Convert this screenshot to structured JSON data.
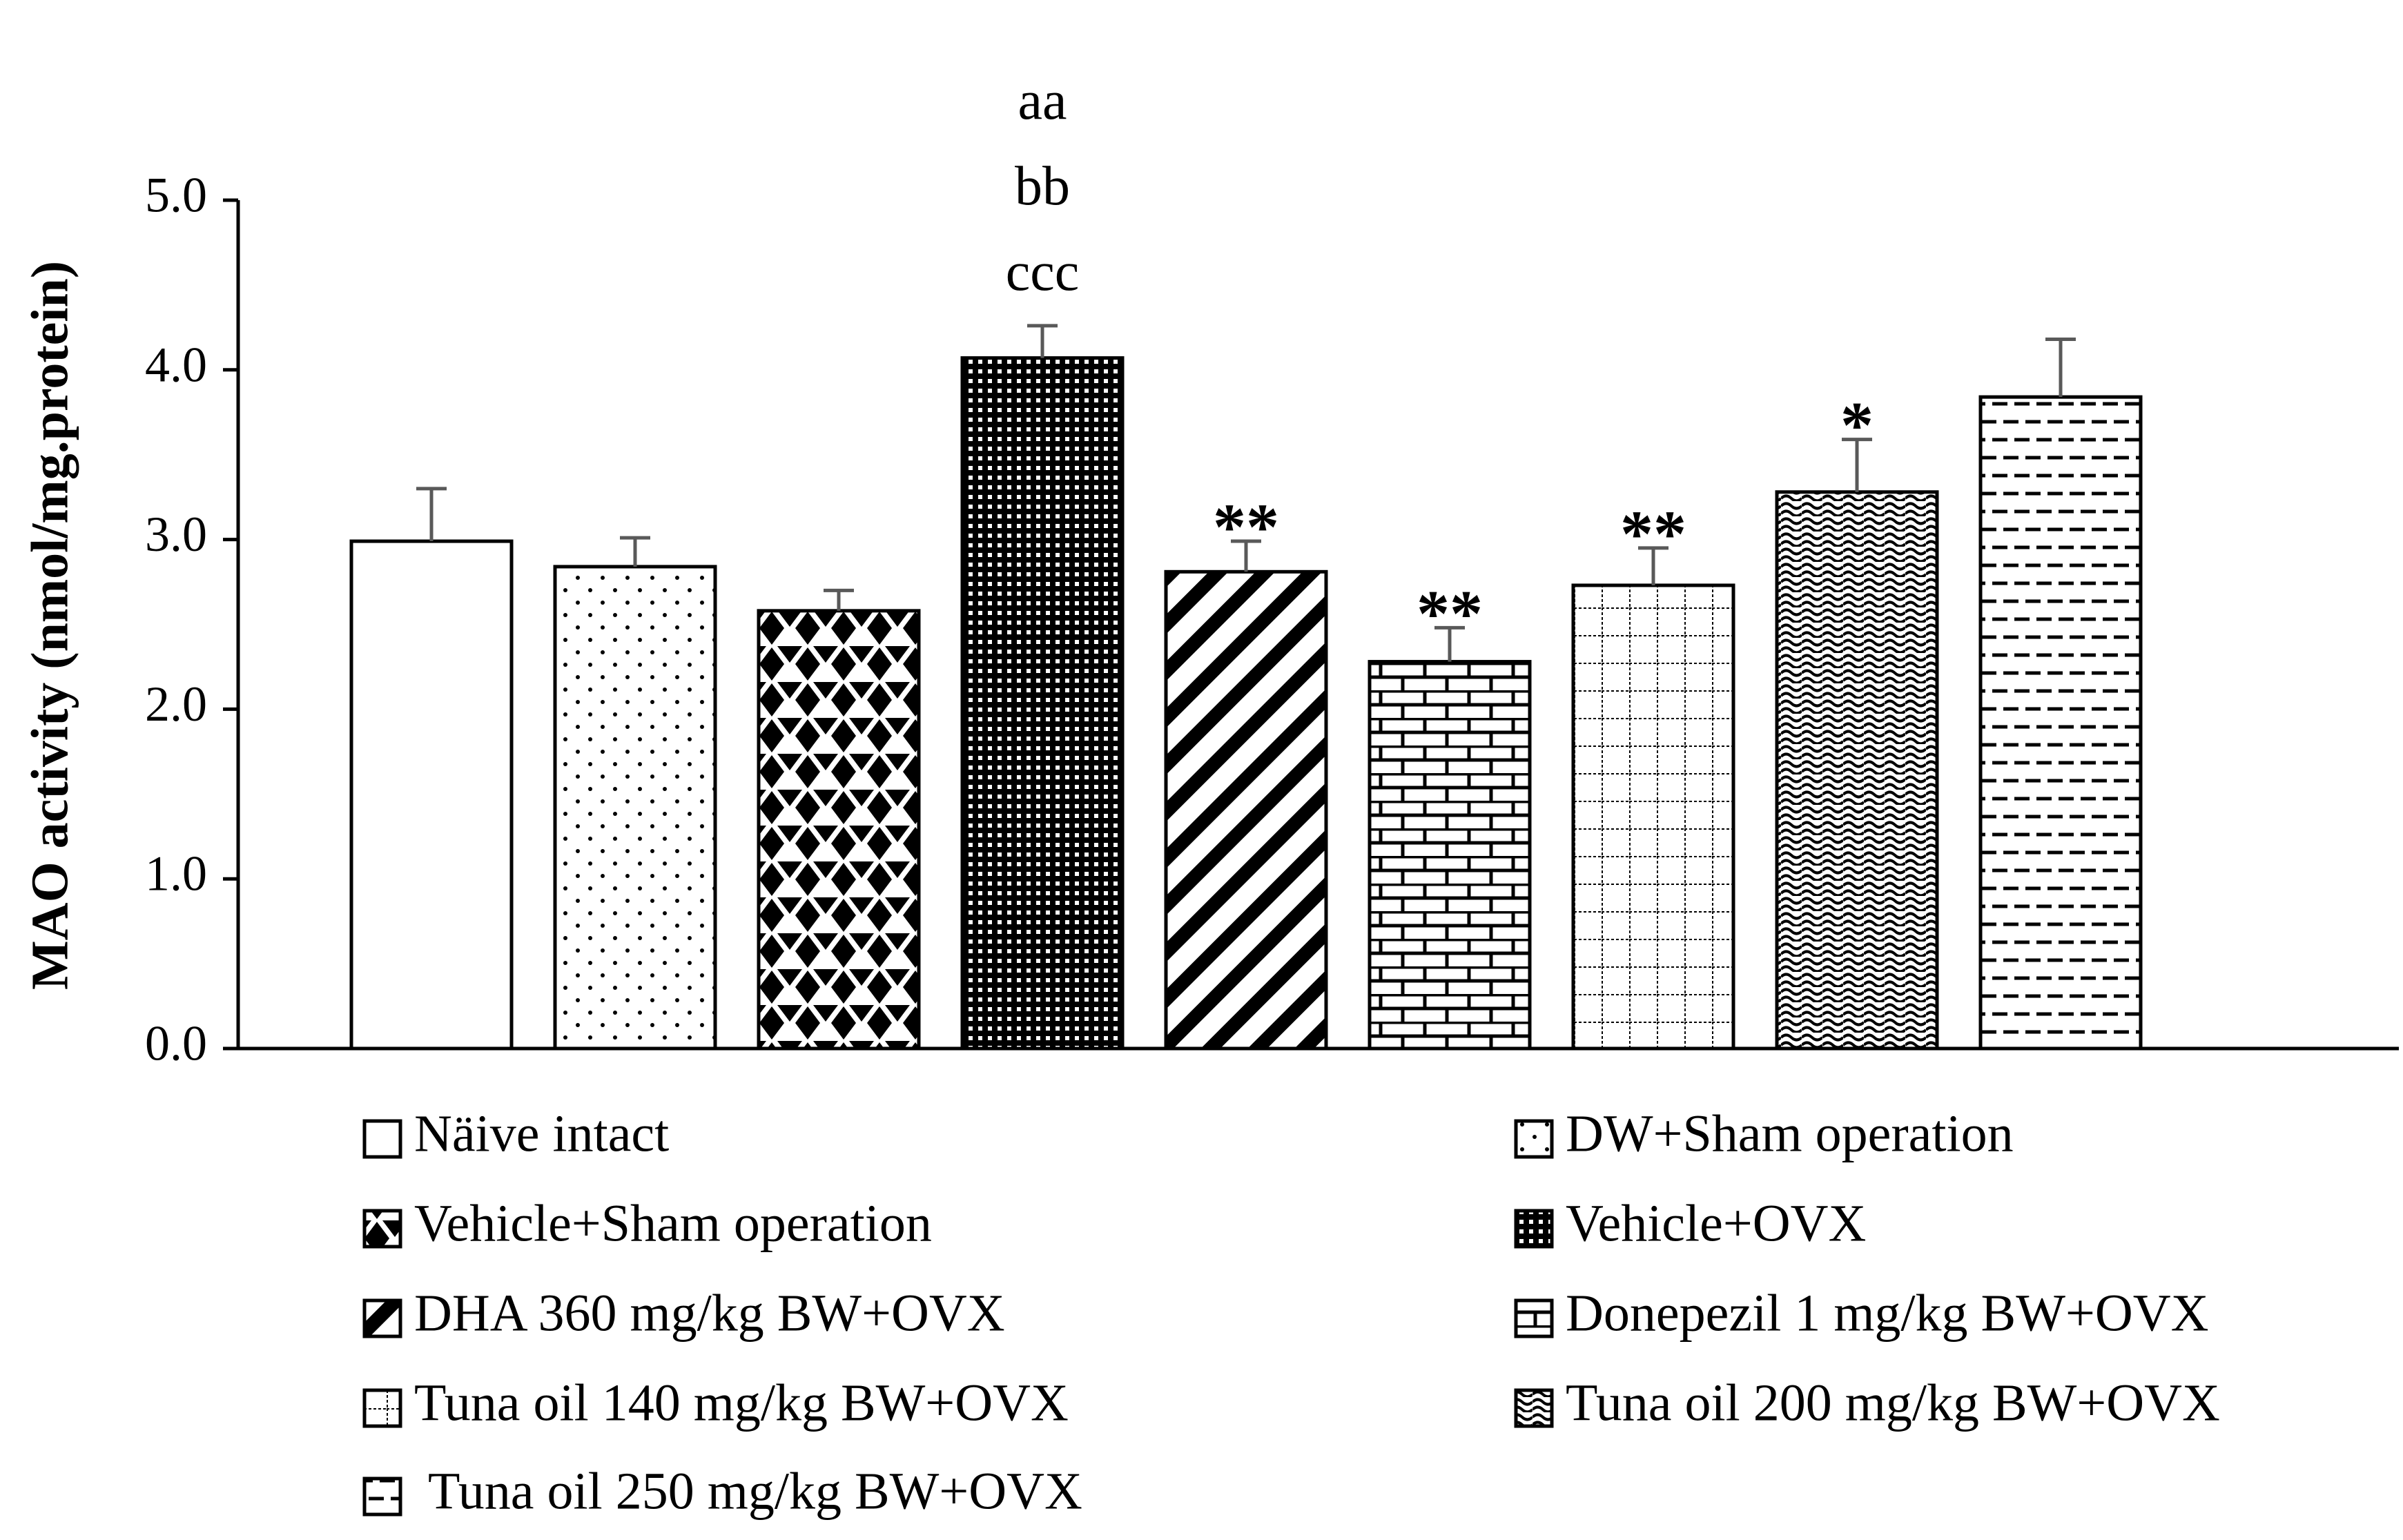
{
  "chart_data": {
    "type": "bar",
    "title": "",
    "xlabel": "",
    "ylabel": "MAO activity (nmol/mg.protein)",
    "ylim": [
      0,
      5
    ],
    "yticks": [
      "0.0",
      "1.0",
      "2.0",
      "3.0",
      "4.0",
      "5.0"
    ],
    "grid": false,
    "legend_position": "bottom",
    "categories": [
      "Näive intact",
      "DW+Sham operation",
      "Vehicle+Sham operation",
      "Vehicle+OVX",
      "DHA 360 mg/kg BW+OVX",
      "Donepezil 1 mg/kg BW+OVX",
      "Tuna oil 140 mg/kg BW+OVX",
      "Tuna oil 200 mg/kg BW+OVX",
      "Tuna oil 250 mg/kg BW+OVX"
    ],
    "values": [
      2.99,
      2.84,
      2.58,
      4.07,
      2.81,
      2.28,
      2.73,
      3.28,
      3.84
    ],
    "errors": [
      0.31,
      0.17,
      0.12,
      0.19,
      0.18,
      0.2,
      0.22,
      0.31,
      0.34
    ],
    "patterns": [
      "none",
      "dots",
      "diamonds",
      "dense",
      "diagonal",
      "brick",
      "grid",
      "wave",
      "dashes"
    ],
    "annotations": [
      {
        "bar": 3,
        "lines": [
          "aa",
          "bb",
          "ccc"
        ]
      },
      {
        "bar": 4,
        "lines": [
          "**"
        ]
      },
      {
        "bar": 5,
        "lines": [
          "**"
        ]
      },
      {
        "bar": 6,
        "lines": [
          "**"
        ]
      },
      {
        "bar": 7,
        "lines": [
          "*"
        ]
      }
    ],
    "error_color": "#595959",
    "bar_edge_color": "#000000"
  }
}
